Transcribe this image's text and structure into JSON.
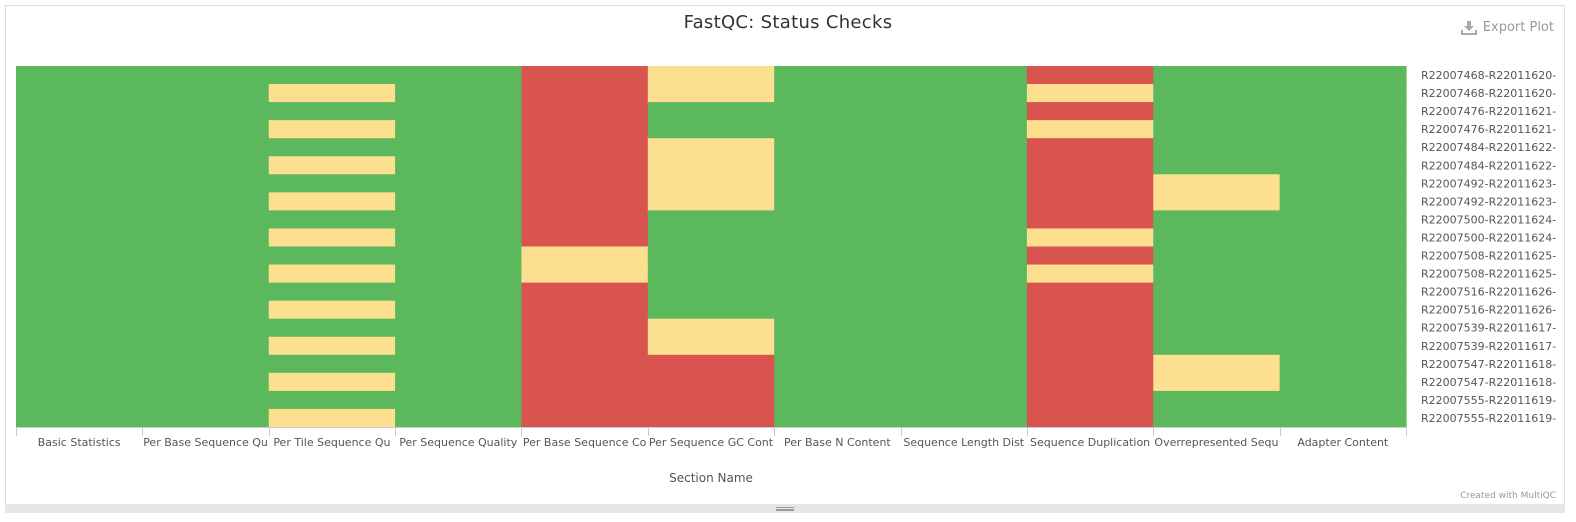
{
  "header": {
    "title": "FastQC: Status Checks",
    "export_label": "Export Plot"
  },
  "footer": {
    "credit": "Created with MultiQC"
  },
  "chart_data": {
    "type": "heatmap",
    "title": "FastQC: Status Checks",
    "xlabel": "Section Name",
    "ylabel": "",
    "x_categories": [
      "Basic Statistics",
      "Per Base Sequence Qu",
      "Per Tile Sequence Qu",
      "Per Sequence Quality",
      "Per Base Sequence Co",
      "Per Sequence GC Cont",
      "Per Base N Content",
      "Sequence Length Dist",
      "Sequence Duplication",
      "Overrepresented Sequ",
      "Adapter Content"
    ],
    "y_categories": [
      "R22007468-R22011620-",
      "R22007468-R22011620-",
      "R22007476-R22011621-",
      "R22007476-R22011621-",
      "R22007484-R22011622-",
      "R22007484-R22011622-",
      "R22007492-R22011623-",
      "R22007492-R22011623-",
      "R22007500-R22011624-",
      "R22007500-R22011624-",
      "R22007508-R22011625-",
      "R22007508-R22011625-",
      "R22007516-R22011626-",
      "R22007516-R22011626-",
      "R22007539-R22011617-",
      "R22007539-R22011617-",
      "R22007547-R22011618-",
      "R22007547-R22011618-",
      "R22007555-R22011619-",
      "R22007555-R22011619-"
    ],
    "status_colors": {
      "pass": "#5cb85c",
      "warn": "#fce08f",
      "fail": "#d9534f"
    },
    "values": [
      [
        "pass",
        "pass",
        "pass",
        "pass",
        "fail",
        "warn",
        "pass",
        "pass",
        "fail",
        "pass",
        "pass"
      ],
      [
        "pass",
        "pass",
        "warn",
        "pass",
        "fail",
        "warn",
        "pass",
        "pass",
        "warn",
        "pass",
        "pass"
      ],
      [
        "pass",
        "pass",
        "pass",
        "pass",
        "fail",
        "pass",
        "pass",
        "pass",
        "fail",
        "pass",
        "pass"
      ],
      [
        "pass",
        "pass",
        "warn",
        "pass",
        "fail",
        "pass",
        "pass",
        "pass",
        "warn",
        "pass",
        "pass"
      ],
      [
        "pass",
        "pass",
        "pass",
        "pass",
        "fail",
        "warn",
        "pass",
        "pass",
        "fail",
        "pass",
        "pass"
      ],
      [
        "pass",
        "pass",
        "warn",
        "pass",
        "fail",
        "warn",
        "pass",
        "pass",
        "fail",
        "pass",
        "pass"
      ],
      [
        "pass",
        "pass",
        "pass",
        "pass",
        "fail",
        "warn",
        "pass",
        "pass",
        "fail",
        "warn",
        "pass"
      ],
      [
        "pass",
        "pass",
        "warn",
        "pass",
        "fail",
        "warn",
        "pass",
        "pass",
        "fail",
        "warn",
        "pass"
      ],
      [
        "pass",
        "pass",
        "pass",
        "pass",
        "fail",
        "pass",
        "pass",
        "pass",
        "fail",
        "pass",
        "pass"
      ],
      [
        "pass",
        "pass",
        "warn",
        "pass",
        "fail",
        "pass",
        "pass",
        "pass",
        "warn",
        "pass",
        "pass"
      ],
      [
        "pass",
        "pass",
        "pass",
        "pass",
        "warn",
        "pass",
        "pass",
        "pass",
        "fail",
        "pass",
        "pass"
      ],
      [
        "pass",
        "pass",
        "warn",
        "pass",
        "warn",
        "pass",
        "pass",
        "pass",
        "warn",
        "pass",
        "pass"
      ],
      [
        "pass",
        "pass",
        "pass",
        "pass",
        "fail",
        "pass",
        "pass",
        "pass",
        "fail",
        "pass",
        "pass"
      ],
      [
        "pass",
        "pass",
        "warn",
        "pass",
        "fail",
        "pass",
        "pass",
        "pass",
        "fail",
        "pass",
        "pass"
      ],
      [
        "pass",
        "pass",
        "pass",
        "pass",
        "fail",
        "warn",
        "pass",
        "pass",
        "fail",
        "pass",
        "pass"
      ],
      [
        "pass",
        "pass",
        "warn",
        "pass",
        "fail",
        "warn",
        "pass",
        "pass",
        "fail",
        "pass",
        "pass"
      ],
      [
        "pass",
        "pass",
        "pass",
        "pass",
        "fail",
        "fail",
        "pass",
        "pass",
        "fail",
        "warn",
        "pass"
      ],
      [
        "pass",
        "pass",
        "warn",
        "pass",
        "fail",
        "fail",
        "pass",
        "pass",
        "fail",
        "warn",
        "pass"
      ],
      [
        "pass",
        "pass",
        "pass",
        "pass",
        "fail",
        "fail",
        "pass",
        "pass",
        "fail",
        "pass",
        "pass"
      ],
      [
        "pass",
        "pass",
        "warn",
        "pass",
        "fail",
        "fail",
        "pass",
        "pass",
        "fail",
        "pass",
        "pass"
      ]
    ]
  }
}
